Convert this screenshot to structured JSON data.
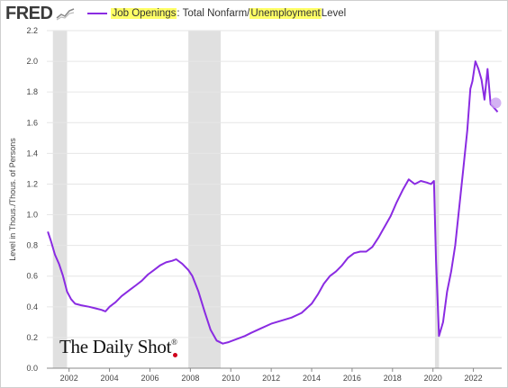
{
  "header": {
    "logo_text": "FRED",
    "legend_part1": "Job Openings",
    "legend_part2": ": Total Nonfarm/",
    "legend_part3": "Unemployment",
    "legend_part4": " Level"
  },
  "watermark": {
    "text": "The Daily Shot",
    "mark": "®"
  },
  "colors": {
    "line": "#8a2be2",
    "recession": "#e0e0e0",
    "highlight": "#ffff66",
    "grid": "#e6e6e6"
  },
  "icons": {
    "logo": "fred-chart-icon"
  },
  "chart_data": {
    "type": "line",
    "title": "",
    "xlabel": "",
    "ylabel": "Level in Thous./Thous. of Persons",
    "xlim": [
      2000.9,
      2023.4
    ],
    "ylim": [
      0,
      2.2
    ],
    "yticks": [
      0,
      0.2,
      0.4,
      0.6,
      0.8,
      1.0,
      1.2,
      1.4,
      1.6,
      1.8,
      2.0,
      2.2
    ],
    "ytick_labels": [
      "0.0",
      "0.2",
      "0.4",
      "0.6",
      "0.8",
      "1.0",
      "1.2",
      "1.4",
      "1.6",
      "1.8",
      "2.0",
      "2.2"
    ],
    "xticks": [
      2002,
      2004,
      2006,
      2008,
      2010,
      2012,
      2014,
      2016,
      2018,
      2020,
      2022
    ],
    "xtick_labels": [
      "2002",
      "2004",
      "2006",
      "2008",
      "2010",
      "2012",
      "2014",
      "2016",
      "2018",
      "2020",
      "2022"
    ],
    "grid": "horizontal",
    "recessions": [
      [
        2001.2,
        2001.9
      ],
      [
        2007.9,
        2009.5
      ],
      [
        2020.1,
        2020.3
      ]
    ],
    "series": [
      {
        "x": [
          2000.95,
          2001.1,
          2001.3,
          2001.5,
          2001.7,
          2001.9,
          2002.1,
          2002.3,
          2002.6,
          2003.0,
          2003.3,
          2003.6,
          2003.8,
          2004.0,
          2004.3,
          2004.6,
          2005.0,
          2005.3,
          2005.6,
          2005.9,
          2006.2,
          2006.5,
          2006.8,
          2007.1,
          2007.3,
          2007.6,
          2007.9,
          2008.1,
          2008.4,
          2008.7,
          2009.0,
          2009.3,
          2009.6,
          2009.9,
          2010.3,
          2010.7,
          2011.0,
          2011.5,
          2012.0,
          2012.5,
          2013.0,
          2013.5,
          2014.0,
          2014.3,
          2014.6,
          2014.9,
          2015.2,
          2015.5,
          2015.8,
          2016.1,
          2016.4,
          2016.7,
          2017.0,
          2017.3,
          2017.6,
          2017.9,
          2018.2,
          2018.5,
          2018.8,
          2019.1,
          2019.4,
          2019.7,
          2019.9,
          2020.05,
          2020.15,
          2020.3,
          2020.5,
          2020.7,
          2020.9,
          2021.1,
          2021.3,
          2021.5,
          2021.7,
          2021.85,
          2021.95,
          2022.1,
          2022.25,
          2022.4,
          2022.55,
          2022.7,
          2022.85,
          2023.0,
          2023.2
        ],
        "y": [
          0.89,
          0.83,
          0.74,
          0.68,
          0.6,
          0.5,
          0.45,
          0.42,
          0.41,
          0.4,
          0.39,
          0.38,
          0.37,
          0.4,
          0.43,
          0.47,
          0.51,
          0.54,
          0.57,
          0.61,
          0.64,
          0.67,
          0.69,
          0.7,
          0.71,
          0.68,
          0.64,
          0.6,
          0.5,
          0.37,
          0.25,
          0.18,
          0.16,
          0.17,
          0.19,
          0.21,
          0.23,
          0.26,
          0.29,
          0.31,
          0.33,
          0.36,
          0.42,
          0.48,
          0.55,
          0.6,
          0.63,
          0.67,
          0.72,
          0.75,
          0.76,
          0.76,
          0.79,
          0.85,
          0.92,
          0.99,
          1.08,
          1.16,
          1.23,
          1.2,
          1.22,
          1.21,
          1.2,
          1.22,
          0.7,
          0.21,
          0.3,
          0.5,
          0.63,
          0.8,
          1.05,
          1.3,
          1.55,
          1.82,
          1.87,
          2.0,
          1.95,
          1.88,
          1.75,
          1.95,
          1.72,
          1.7,
          1.67
        ]
      }
    ]
  }
}
